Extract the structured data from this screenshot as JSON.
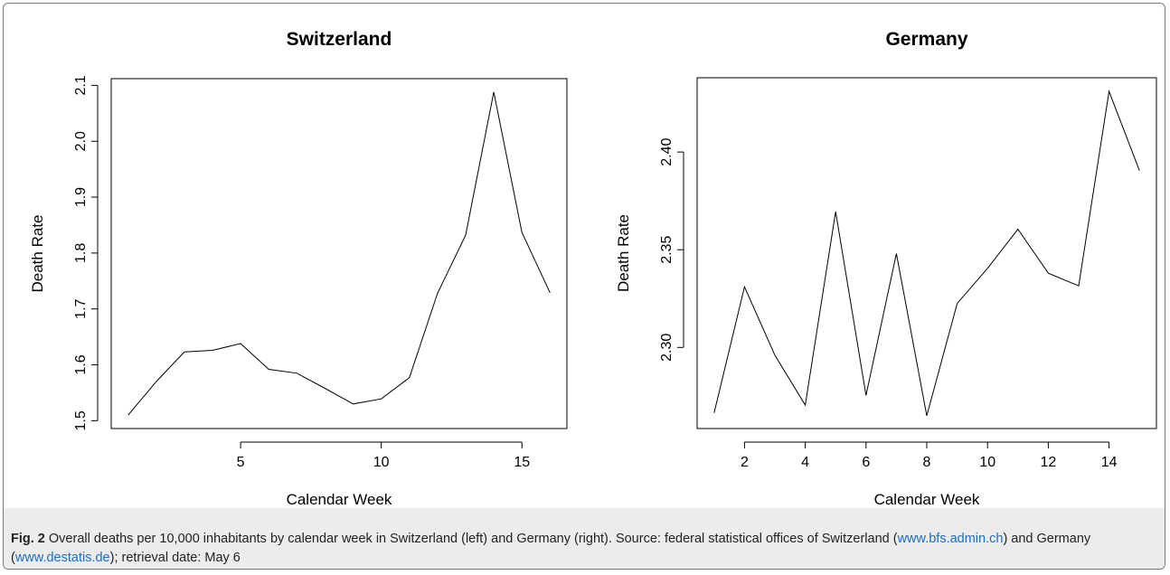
{
  "chart_data": [
    {
      "type": "line",
      "title": "Switzerland",
      "xlabel": "Calendar Week",
      "ylabel": "Death Rate",
      "x": [
        1,
        2,
        3,
        4,
        5,
        6,
        7,
        8,
        9,
        10,
        11,
        12,
        13,
        14,
        15,
        16
      ],
      "series": [
        {
          "values": [
            1.51,
            1.57,
            1.623,
            1.626,
            1.638,
            1.592,
            1.585,
            1.558,
            1.53,
            1.539,
            1.577,
            1.728,
            1.832,
            2.088,
            1.837,
            1.729
          ]
        }
      ],
      "xlim": [
        0.4,
        16.6
      ],
      "ylim": [
        1.486,
        2.112
      ],
      "xticks": [
        5,
        10,
        15
      ],
      "yticks": [
        1.5,
        1.6,
        1.7,
        1.8,
        1.9,
        2.0,
        2.1
      ],
      "xtick_labels": [
        "5",
        "10",
        "15"
      ],
      "ytick_labels": [
        "1.5",
        "1.6",
        "1.7",
        "1.8",
        "1.9",
        "2.0",
        "2.1"
      ],
      "grid": false
    },
    {
      "type": "line",
      "title": "Germany",
      "xlabel": "Calendar Week",
      "ylabel": "Death Rate",
      "x": [
        1,
        2,
        3,
        4,
        5,
        6,
        7,
        8,
        9,
        10,
        11,
        12,
        13,
        14,
        15
      ],
      "series": [
        {
          "values": [
            2.2665,
            2.331,
            2.296,
            2.2705,
            2.3695,
            2.2755,
            2.348,
            2.265,
            2.3225,
            2.3405,
            2.3605,
            2.338,
            2.3315,
            2.431,
            2.3905
          ]
        }
      ],
      "xlim": [
        0.44,
        15.56
      ],
      "ylim": [
        2.2585,
        2.438
      ],
      "xticks": [
        2,
        4,
        6,
        8,
        10,
        12,
        14
      ],
      "yticks": [
        2.3,
        2.35,
        2.4
      ],
      "xtick_labels": [
        "2",
        "4",
        "6",
        "8",
        "10",
        "12",
        "14"
      ],
      "ytick_labels": [
        "2.30",
        "2.35",
        "2.40"
      ],
      "grid": false
    }
  ],
  "caption": {
    "label": "Fig. 2",
    "text_before_link1": " Overall deaths per 10,000 inhabitants by calendar week in Switzerland (left) and Germany (right). Source: federal statistical offices of Switzerland (",
    "link1": "www.bfs.admin.ch",
    "text_between": ") and Germany (",
    "link2": "www.destatis.de",
    "text_after": "); retrieval date: May 6"
  }
}
